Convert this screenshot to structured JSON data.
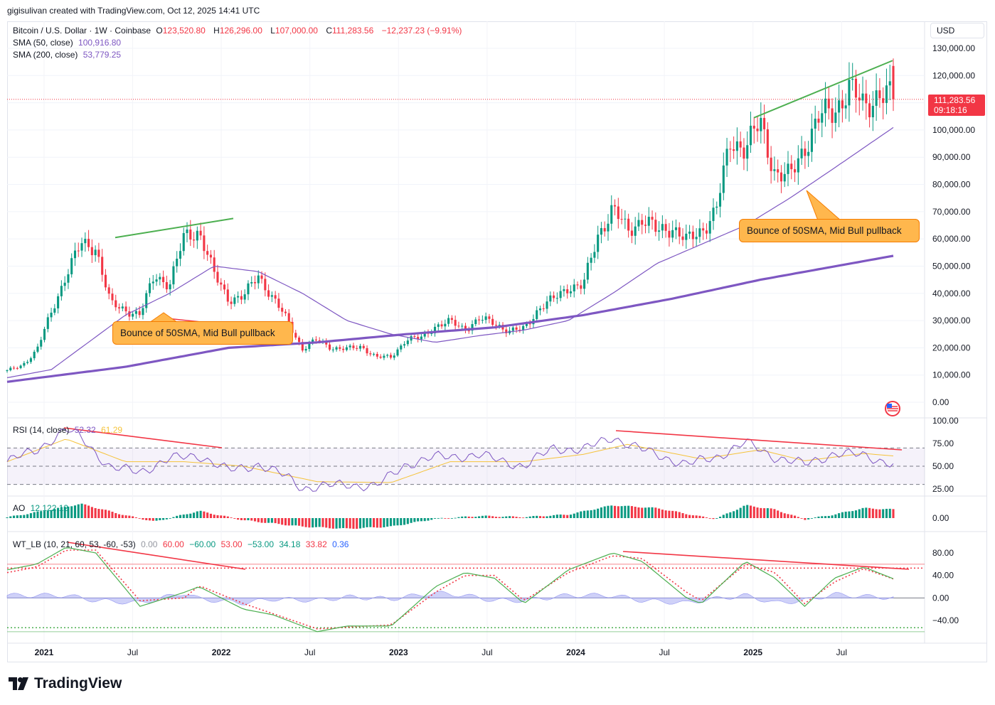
{
  "credit": "gigisulivan created with TradingView.com, Oct 12, 2025 14:41 UTC",
  "brand": "TradingView",
  "currency_button": "USD",
  "symbol": {
    "name": "Bitcoin / U.S. Dollar · 1W · Coinbase",
    "o_label": "O",
    "o": "123,520.80",
    "h_label": "H",
    "h": "126,296.00",
    "l_label": "L",
    "l": "107,000.00",
    "c_label": "C",
    "c": "111,283.56",
    "change": "−12,237.23 (−9.91%)"
  },
  "indicators": {
    "sma50_label": "SMA (50, close)",
    "sma50_value": "100,916.80",
    "sma200_label": "SMA (200, close)",
    "sma200_value": "53,779.25",
    "rsi_label": "RSI (14, close)",
    "rsi_value": "52.32",
    "rsi_ma_value": "61.29",
    "ao_label": "AO",
    "ao_value": "12,122.12",
    "wt_label": "WT_LB (10, 21, 60, 53, -60, -53)",
    "wt_values": [
      "0.00",
      "60.00",
      "−60.00",
      "53.00",
      "−53.00",
      "34.18",
      "33.82",
      "0.36"
    ]
  },
  "price_tag": {
    "price": "111,283.56",
    "countdown": "09:18:16"
  },
  "annotations": {
    "left_callout": "Bounce of 50SMA, Mid Bull pullback",
    "right_callout": "Bounce of 50SMA, Mid Bull pullback"
  },
  "colors": {
    "up": "#089981",
    "down": "#f23645",
    "sma50": "#7e57c2",
    "sma200": "#7e57c2",
    "trend_green": "#4caf50",
    "trend_red": "#f23645",
    "rsi": "#7e57c2",
    "rsi_ma": "#f5c33b",
    "wt1": "#4caf50",
    "wt2": "#f23645",
    "wt_hist": "#9598f0",
    "callout": "#ffb74d"
  },
  "chart_data": [
    {
      "type": "candlestick",
      "title": "Bitcoin / U.S. Dollar · 1W · Coinbase",
      "ylim": [
        0,
        130000
      ],
      "y_ticks": [
        "130,000.00",
        "120,000.00",
        "110,000.00",
        "100,000.00",
        "90,000.00",
        "80,000.00",
        "70,000.00",
        "60,000.00",
        "50,000.00",
        "40,000.00",
        "30,000.00",
        "20,000.00",
        "10,000.00",
        "0.00"
      ],
      "x_ticks": [
        "2021",
        "Jul",
        "2022",
        "Jul",
        "2023",
        "Jul",
        "2024",
        "Jul",
        "2025",
        "Jul"
      ],
      "close_anchors": [
        [
          "2020-10",
          11500
        ],
        [
          "2020-11",
          13500
        ],
        [
          "2020-12",
          19000
        ],
        [
          "2021-01",
          33000
        ],
        [
          "2021-02",
          47000
        ],
        [
          "2021-03",
          58000
        ],
        [
          "2021-04",
          57000
        ],
        [
          "2021-05",
          36000
        ],
        [
          "2021-06",
          34000
        ],
        [
          "2021-07",
          32000
        ],
        [
          "2021-08",
          47000
        ],
        [
          "2021-09",
          43000
        ],
        [
          "2021-10",
          61000
        ],
        [
          "2021-11",
          63000
        ],
        [
          "2021-12",
          47000
        ],
        [
          "2022-01",
          38000
        ],
        [
          "2022-02",
          38500
        ],
        [
          "2022-03",
          47000
        ],
        [
          "2022-04",
          38000
        ],
        [
          "2022-05",
          30000
        ],
        [
          "2022-06",
          19500
        ],
        [
          "2022-07",
          23000
        ],
        [
          "2022-08",
          20000
        ],
        [
          "2022-09",
          19500
        ],
        [
          "2022-10",
          20500
        ],
        [
          "2022-11",
          16500
        ],
        [
          "2022-12",
          16600
        ],
        [
          "2023-01",
          23000
        ],
        [
          "2023-02",
          23500
        ],
        [
          "2023-03",
          28000
        ],
        [
          "2023-04",
          29500
        ],
        [
          "2023-05",
          27000
        ],
        [
          "2023-06",
          30500
        ],
        [
          "2023-07",
          29200
        ],
        [
          "2023-08",
          26000
        ],
        [
          "2023-09",
          27000
        ],
        [
          "2023-10",
          34500
        ],
        [
          "2023-11",
          37800
        ],
        [
          "2023-12",
          42500
        ],
        [
          "2024-01",
          42500
        ],
        [
          "2024-02",
          61500
        ],
        [
          "2024-03",
          71000
        ],
        [
          "2024-04",
          63000
        ],
        [
          "2024-05",
          67500
        ],
        [
          "2024-06",
          62700
        ],
        [
          "2024-07",
          64600
        ],
        [
          "2024-08",
          59000
        ],
        [
          "2024-09",
          63300
        ],
        [
          "2024-10",
          70200
        ],
        [
          "2024-11",
          96500
        ],
        [
          "2024-12",
          93500
        ],
        [
          "2025-01",
          102400
        ],
        [
          "2025-02",
          84300
        ],
        [
          "2025-03",
          82500
        ],
        [
          "2025-04",
          94200
        ],
        [
          "2025-05",
          104600
        ],
        [
          "2025-06",
          107100
        ],
        [
          "2025-07",
          115700
        ],
        [
          "2025-08",
          108200
        ],
        [
          "2025-09",
          114000
        ],
        [
          "2025-10",
          111283.56
        ]
      ],
      "sma50_anchors": [
        [
          "2020-10",
          9000
        ],
        [
          "2021-01",
          12000
        ],
        [
          "2021-03",
          20000
        ],
        [
          "2021-06",
          32000
        ],
        [
          "2021-09",
          40000
        ],
        [
          "2021-12",
          50000
        ],
        [
          "2022-03",
          48000
        ],
        [
          "2022-06",
          40000
        ],
        [
          "2022-09",
          30000
        ],
        [
          "2022-12",
          25000
        ],
        [
          "2023-03",
          22000
        ],
        [
          "2023-06",
          24500
        ],
        [
          "2023-09",
          26500
        ],
        [
          "2023-12",
          30000
        ],
        [
          "2024-03",
          40000
        ],
        [
          "2024-06",
          51000
        ],
        [
          "2024-09",
          58000
        ],
        [
          "2024-12",
          65000
        ],
        [
          "2025-03",
          75000
        ],
        [
          "2025-06",
          86000
        ],
        [
          "2025-10",
          100916.8
        ]
      ],
      "sma200_anchors": [
        [
          "2020-10",
          7500
        ],
        [
          "2021-06",
          13000
        ],
        [
          "2022-01",
          20000
        ],
        [
          "2022-07",
          22000
        ],
        [
          "2023-01",
          25000
        ],
        [
          "2023-07",
          27500
        ],
        [
          "2024-01",
          32000
        ],
        [
          "2024-07",
          38000
        ],
        [
          "2025-01",
          45000
        ],
        [
          "2025-10",
          53779.25
        ]
      ]
    },
    {
      "type": "line",
      "title": "RSI (14, close)",
      "ylim": [
        10,
        100
      ],
      "y_ticks": [
        "100.00",
        "75.00",
        "50.00",
        "25.00"
      ],
      "levels": [
        70,
        50,
        30
      ],
      "rsi_anchors": [
        [
          "2020-10",
          55
        ],
        [
          "2020-12",
          68
        ],
        [
          "2021-02",
          90
        ],
        [
          "2021-03",
          82
        ],
        [
          "2021-05",
          48
        ],
        [
          "2021-07",
          44
        ],
        [
          "2021-09",
          58
        ],
        [
          "2021-11",
          62
        ],
        [
          "2022-01",
          45
        ],
        [
          "2022-03",
          52
        ],
        [
          "2022-05",
          38
        ],
        [
          "2022-06",
          26
        ],
        [
          "2022-09",
          30
        ],
        [
          "2022-11",
          28
        ],
        [
          "2023-01",
          52
        ],
        [
          "2023-03",
          60
        ],
        [
          "2023-06",
          62
        ],
        [
          "2023-09",
          50
        ],
        [
          "2023-11",
          70
        ],
        [
          "2024-01",
          68
        ],
        [
          "2024-03",
          82
        ],
        [
          "2024-05",
          68
        ],
        [
          "2024-08",
          52
        ],
        [
          "2024-10",
          60
        ],
        [
          "2024-12",
          76
        ],
        [
          "2025-02",
          60
        ],
        [
          "2025-04",
          52
        ],
        [
          "2025-06",
          64
        ],
        [
          "2025-08",
          62
        ],
        [
          "2025-10",
          52.32
        ]
      ],
      "rsi_ma_anchors": [
        [
          "2020-10",
          55
        ],
        [
          "2021-02",
          80
        ],
        [
          "2021-06",
          55
        ],
        [
          "2021-10",
          55
        ],
        [
          "2022-02",
          50
        ],
        [
          "2022-07",
          33
        ],
        [
          "2022-12",
          32
        ],
        [
          "2023-04",
          55
        ],
        [
          "2023-09",
          55
        ],
        [
          "2024-01",
          63
        ],
        [
          "2024-04",
          74
        ],
        [
          "2024-09",
          58
        ],
        [
          "2025-01",
          68
        ],
        [
          "2025-04",
          56
        ],
        [
          "2025-08",
          64
        ],
        [
          "2025-10",
          61.29
        ]
      ]
    },
    {
      "type": "bar",
      "title": "AO",
      "y_ticks": [
        "0.00"
      ],
      "ao_anchors": [
        [
          "2020-10",
          1000
        ],
        [
          "2021-01",
          12000
        ],
        [
          "2021-03",
          20000
        ],
        [
          "2021-06",
          4000
        ],
        [
          "2021-08",
          -5000
        ],
        [
          "2021-11",
          10000
        ],
        [
          "2022-02",
          -3000
        ],
        [
          "2022-06",
          -12000
        ],
        [
          "2022-09",
          -15000
        ],
        [
          "2022-12",
          -12000
        ],
        [
          "2023-03",
          -1000
        ],
        [
          "2023-06",
          3000
        ],
        [
          "2023-09",
          1500
        ],
        [
          "2023-12",
          5000
        ],
        [
          "2024-03",
          18000
        ],
        [
          "2024-06",
          14000
        ],
        [
          "2024-09",
          2000
        ],
        [
          "2024-10",
          -1000
        ],
        [
          "2024-12",
          18000
        ],
        [
          "2025-02",
          12000
        ],
        [
          "2025-04",
          -2000
        ],
        [
          "2025-06",
          5000
        ],
        [
          "2025-08",
          14000
        ],
        [
          "2025-10",
          12122.12
        ]
      ]
    },
    {
      "type": "line",
      "title": "WT_LB (10, 21, 60, 53, -60, -53)",
      "ylim": [
        -65,
        95
      ],
      "y_ticks": [
        "80.00",
        "40.00",
        "0.00",
        "−40.00"
      ],
      "levels": [
        60,
        53,
        0,
        -53,
        -60
      ],
      "wt1_anchors": [
        [
          "2020-10",
          50
        ],
        [
          "2020-12",
          60
        ],
        [
          "2021-02",
          90
        ],
        [
          "2021-04",
          80
        ],
        [
          "2021-07",
          -15
        ],
        [
          "2021-10",
          10
        ],
        [
          "2021-11",
          20
        ],
        [
          "2022-02",
          -20
        ],
        [
          "2022-04",
          -30
        ],
        [
          "2022-07",
          -60
        ],
        [
          "2022-09",
          -50
        ],
        [
          "2022-12",
          -50
        ],
        [
          "2023-03",
          20
        ],
        [
          "2023-05",
          45
        ],
        [
          "2023-07",
          35
        ],
        [
          "2023-09",
          -10
        ],
        [
          "2023-12",
          50
        ],
        [
          "2024-03",
          80
        ],
        [
          "2024-05",
          65
        ],
        [
          "2024-08",
          0
        ],
        [
          "2024-09",
          -10
        ],
        [
          "2024-12",
          65
        ],
        [
          "2025-02",
          35
        ],
        [
          "2025-04",
          -15
        ],
        [
          "2025-06",
          35
        ],
        [
          "2025-08",
          55
        ],
        [
          "2025-10",
          34.18
        ]
      ],
      "wt2_anchors": [
        [
          "2020-10",
          45
        ],
        [
          "2020-12",
          55
        ],
        [
          "2021-02",
          85
        ],
        [
          "2021-04",
          85
        ],
        [
          "2021-07",
          -5
        ],
        [
          "2021-10",
          0
        ],
        [
          "2021-11",
          22
        ],
        [
          "2022-02",
          -10
        ],
        [
          "2022-04",
          -28
        ],
        [
          "2022-07",
          -55
        ],
        [
          "2022-09",
          -52
        ],
        [
          "2022-12",
          -48
        ],
        [
          "2023-03",
          10
        ],
        [
          "2023-05",
          40
        ],
        [
          "2023-07",
          40
        ],
        [
          "2023-09",
          -5
        ],
        [
          "2023-12",
          45
        ],
        [
          "2024-03",
          75
        ],
        [
          "2024-05",
          70
        ],
        [
          "2024-08",
          10
        ],
        [
          "2024-09",
          -5
        ],
        [
          "2024-12",
          60
        ],
        [
          "2025-02",
          45
        ],
        [
          "2025-04",
          -10
        ],
        [
          "2025-06",
          28
        ],
        [
          "2025-08",
          52
        ],
        [
          "2025-10",
          33.82
        ]
      ]
    }
  ]
}
